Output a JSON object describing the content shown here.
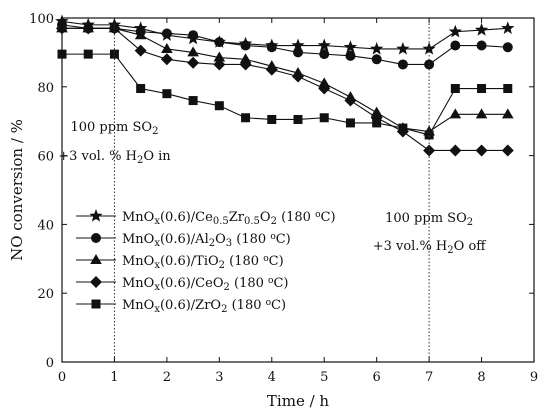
{
  "chart_data": {
    "type": "line",
    "xlabel": "Time / h",
    "ylabel": "NO conversion / %",
    "xlim": [
      0,
      9
    ],
    "ylim": [
      0,
      100
    ],
    "xticks": [
      0,
      1,
      2,
      3,
      4,
      5,
      6,
      7,
      8,
      9
    ],
    "yticks": [
      0,
      20,
      40,
      60,
      80,
      100
    ],
    "grid": false,
    "legend_position": "left",
    "series": [
      {
        "name": "MnOx(0.6)/Ce0.5Zr0.5O2 (180 oC)",
        "legend_rich": [
          [
            "MnO",
            ""
          ],
          [
            "x",
            "sub"
          ],
          [
            "(0.6)/Ce",
            ""
          ],
          [
            "0.5",
            "sub"
          ],
          [
            "Zr",
            ""
          ],
          [
            "0.5",
            "sub"
          ],
          [
            "O",
            ""
          ],
          [
            "2",
            "sub"
          ],
          [
            " (180 ",
            ""
          ],
          [
            "o",
            "sup"
          ],
          [
            "C)",
            ""
          ]
        ],
        "marker": "star",
        "x": [
          0,
          0.5,
          1,
          1.5,
          2,
          2.5,
          3,
          3.5,
          4,
          4.5,
          5,
          5.5,
          6,
          6.5,
          7,
          7.5,
          8,
          8.5
        ],
        "y": [
          99,
          98,
          98,
          97,
          95,
          94,
          93,
          92.5,
          92,
          92,
          92,
          91.5,
          91,
          91,
          91,
          96,
          96.5,
          97
        ]
      },
      {
        "name": "MnOx(0.6)/Al2O3 (180 oC)",
        "legend_rich": [
          [
            "MnO",
            ""
          ],
          [
            "x",
            "sub"
          ],
          [
            "(0.6)/Al",
            ""
          ],
          [
            "2",
            "sub"
          ],
          [
            "O",
            ""
          ],
          [
            "3",
            "sub"
          ],
          [
            " (180 ",
            ""
          ],
          [
            "o",
            "sup"
          ],
          [
            "C)",
            ""
          ]
        ],
        "marker": "circle",
        "x": [
          0,
          0.5,
          1,
          1.5,
          2,
          2.5,
          3,
          3.5,
          4,
          4.5,
          5,
          5.5,
          6,
          6.5,
          7,
          7.5,
          8,
          8.5
        ],
        "y": [
          98,
          97,
          97,
          96,
          95.5,
          95,
          93,
          92,
          91.5,
          90,
          89.5,
          89,
          88,
          86.5,
          86.5,
          92,
          92,
          91.5
        ]
      },
      {
        "name": "MnOx(0.6)/TiO2 (180 oC)",
        "legend_rich": [
          [
            "MnO",
            ""
          ],
          [
            "x",
            "sub"
          ],
          [
            "(0.6)/TiO",
            ""
          ],
          [
            "2",
            "sub"
          ],
          [
            " (180 ",
            ""
          ],
          [
            "o",
            "sup"
          ],
          [
            "C)",
            ""
          ]
        ],
        "marker": "triangle",
        "x": [
          0,
          0.5,
          1,
          1.5,
          2,
          2.5,
          3,
          3.5,
          4,
          4.5,
          5,
          5.5,
          6,
          6.5,
          7,
          7.5,
          8,
          8.5
        ],
        "y": [
          97,
          97,
          97,
          95,
          91,
          90,
          88.5,
          88,
          86,
          84,
          81,
          77,
          72.5,
          68,
          67,
          72,
          72,
          72
        ]
      },
      {
        "name": "MnOx(0.6)/CeO2 (180 oC)",
        "legend_rich": [
          [
            "MnO",
            ""
          ],
          [
            "x",
            "sub"
          ],
          [
            "(0.6)/CeO",
            ""
          ],
          [
            "2",
            "sub"
          ],
          [
            " (180 ",
            ""
          ],
          [
            "o",
            "sup"
          ],
          [
            "C)",
            ""
          ]
        ],
        "marker": "diamond",
        "x": [
          0,
          0.5,
          1,
          1.5,
          2,
          2.5,
          3,
          3.5,
          4,
          4.5,
          5,
          5.5,
          6,
          6.5,
          7,
          7.5,
          8,
          8.5
        ],
        "y": [
          97,
          97,
          97,
          90.5,
          88,
          87,
          86.5,
          86.5,
          85,
          83,
          79.5,
          76,
          71,
          67,
          61.5,
          61.5,
          61.5,
          61.5
        ]
      },
      {
        "name": "MnOx(0.6)/ZrO2 (180 oC)",
        "legend_rich": [
          [
            "MnO",
            ""
          ],
          [
            "x",
            "sub"
          ],
          [
            "(0.6)/ZrO",
            ""
          ],
          [
            "2",
            "sub"
          ],
          [
            " (180 ",
            ""
          ],
          [
            "o",
            "sup"
          ],
          [
            "C)",
            ""
          ]
        ],
        "marker": "square",
        "x": [
          0,
          0.5,
          1,
          1.5,
          2,
          2.5,
          3,
          3.5,
          4,
          4.5,
          5,
          5.5,
          6,
          6.5,
          7,
          7.5,
          8,
          8.5
        ],
        "y": [
          89.5,
          89.5,
          89.5,
          79.5,
          78,
          76,
          74.5,
          71,
          70.5,
          70.5,
          71,
          69.5,
          69.5,
          68,
          66,
          79.5,
          79.5,
          79.5
        ]
      }
    ],
    "annotations": [
      {
        "x": 1,
        "lines": [
          [
            [
              "100 ppm SO",
              ""
            ],
            [
              "2",
              "sub"
            ]
          ],
          [
            [
              "+3 vol. % H",
              ""
            ],
            [
              "2",
              "sub"
            ],
            [
              "O in",
              ""
            ]
          ]
        ]
      },
      {
        "x": 7,
        "lines": [
          [
            [
              "100 ppm SO",
              ""
            ],
            [
              "2",
              "sub"
            ]
          ],
          [
            [
              "+3 vol.% H",
              ""
            ],
            [
              "2",
              "sub"
            ],
            [
              "O off",
              ""
            ]
          ]
        ]
      }
    ]
  }
}
